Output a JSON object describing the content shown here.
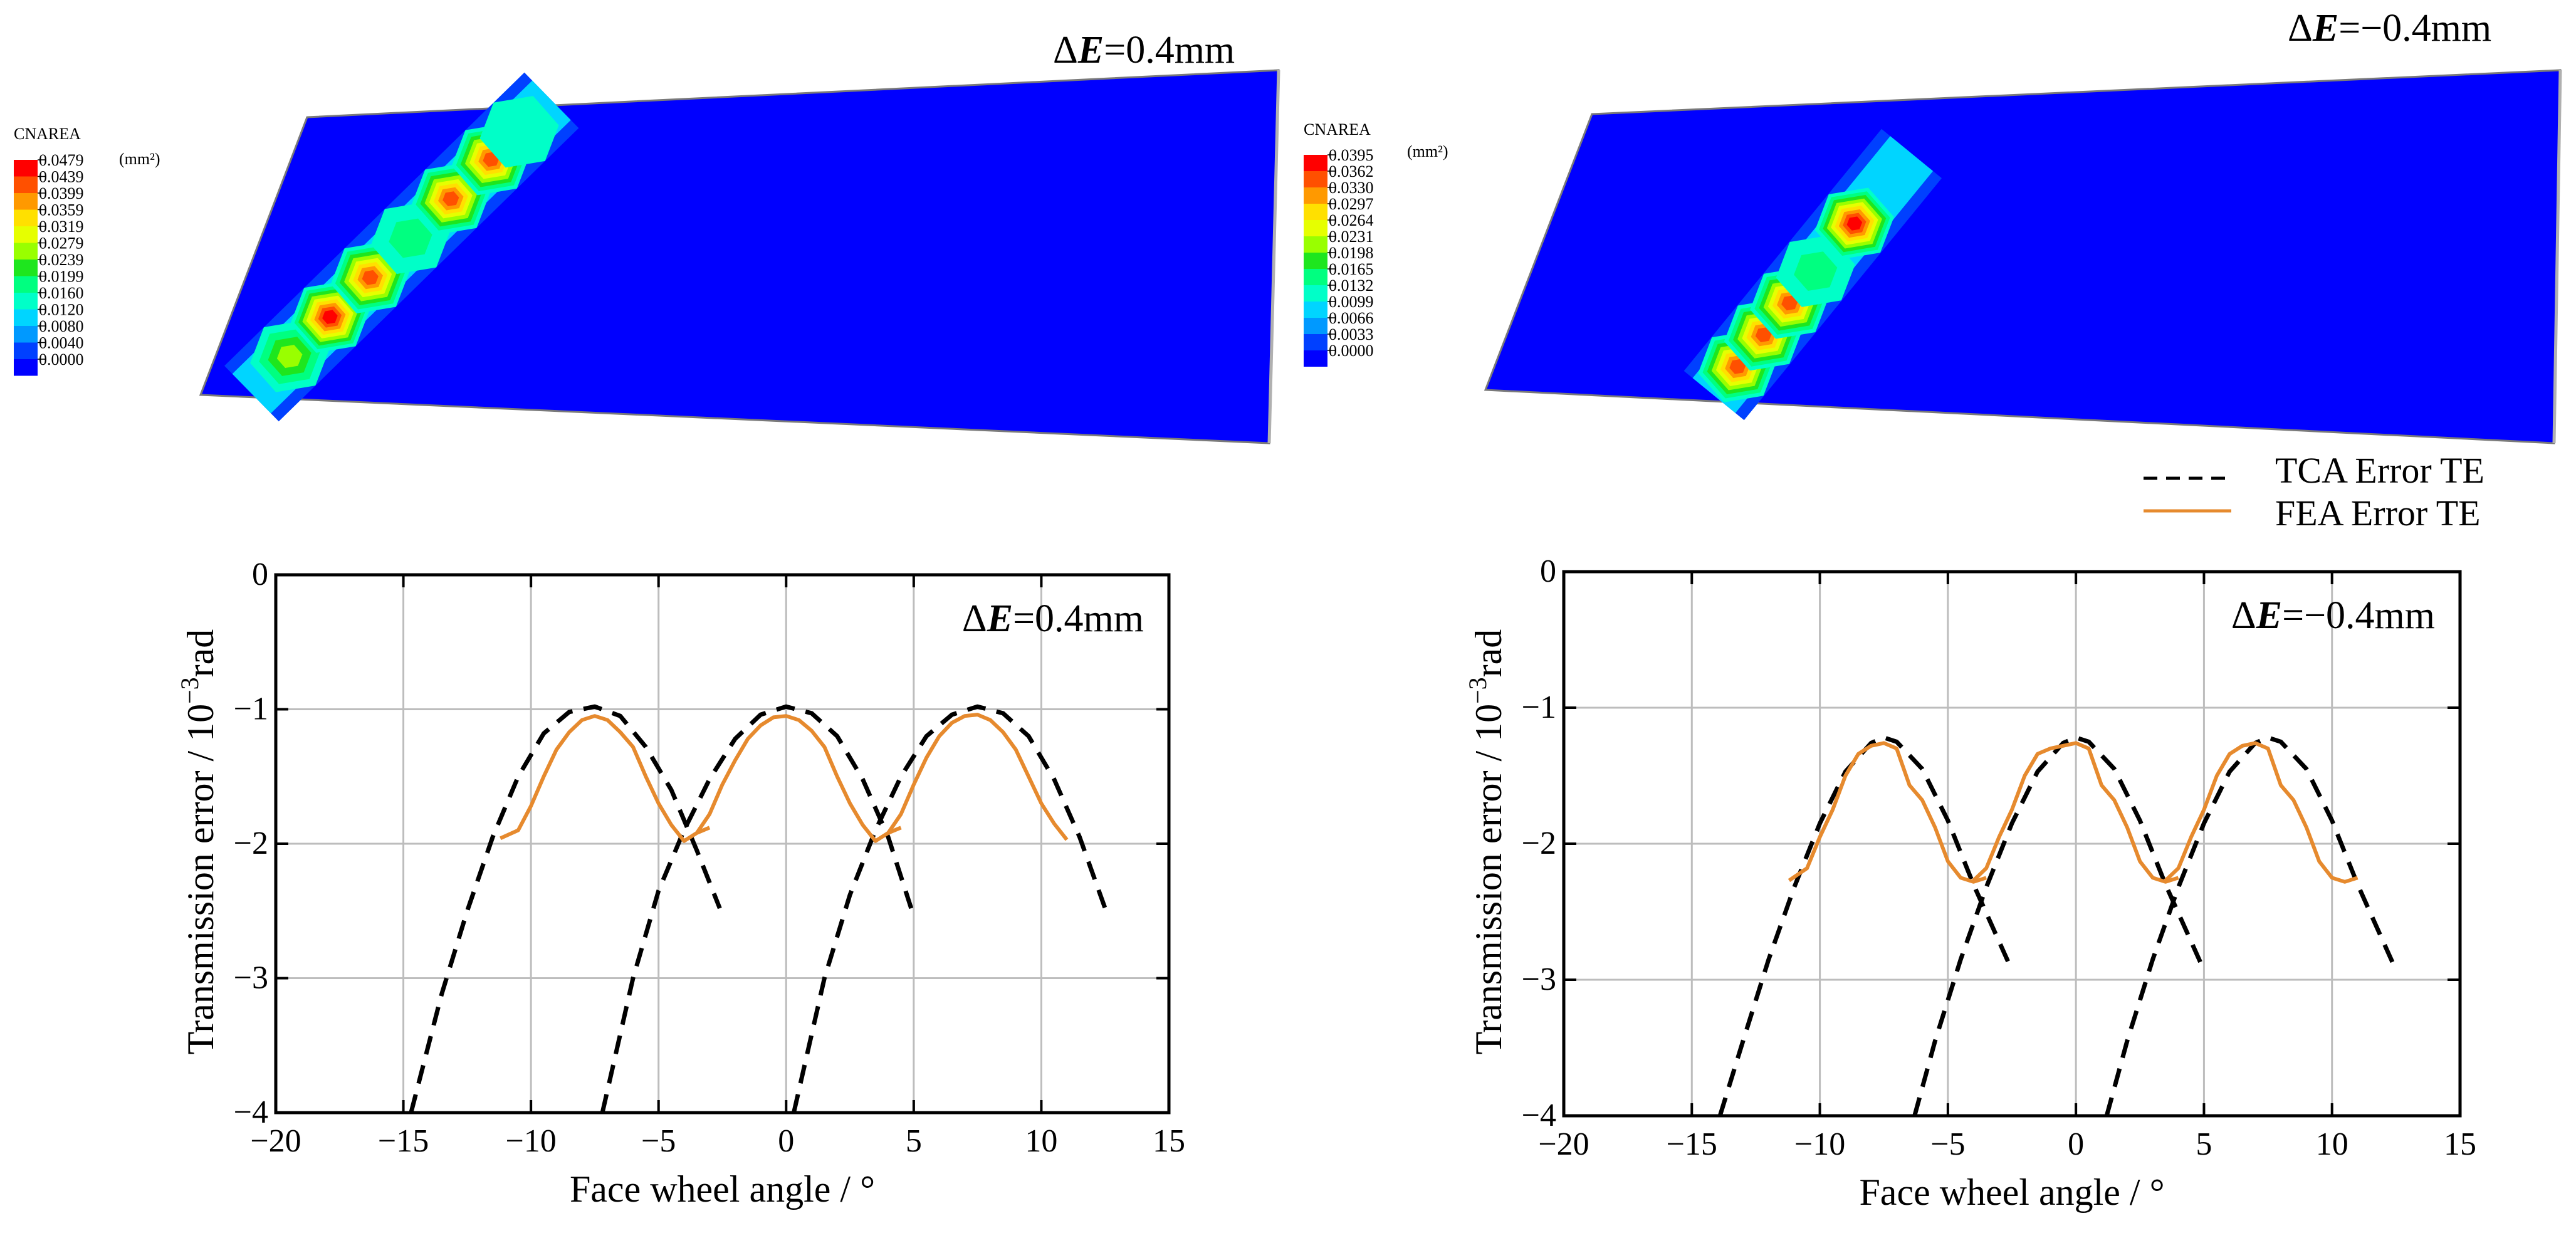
{
  "colors": {
    "contour_scale": [
      "#0000ff",
      "#0040ff",
      "#0099ff",
      "#00d5ff",
      "#00ffc8",
      "#00ff80",
      "#1ee61e",
      "#99ff00",
      "#e6ff00",
      "#ffe000",
      "#ff9900",
      "#ff5000",
      "#ff0000"
    ],
    "plate": "#0000ff",
    "fea": "#e68a2e",
    "tca": "#000000",
    "grid": "#bdbdbd"
  },
  "contour_panels": [
    {
      "title_prefix": "Δ",
      "title_var": "E",
      "title_value": "=0.4mm",
      "legend_title": "CNAREA",
      "legend_unit": "(mm²)",
      "legend_values": [
        "0.0479",
        "0.0439",
        "0.0399",
        "0.0359",
        "0.0319",
        "0.0279",
        "0.0239",
        "0.0199",
        "0.0160",
        "0.0120",
        "0.0080",
        "0.0040",
        "0.0000"
      ],
      "contact_spots": [
        {
          "u": 0.05,
          "intensity": 0.55
        },
        {
          "u": 0.15,
          "intensity": 1.0
        },
        {
          "u": 0.25,
          "intensity": 0.95
        },
        {
          "u": 0.35,
          "intensity": 0.45
        },
        {
          "u": 0.45,
          "intensity": 0.92
        },
        {
          "u": 0.55,
          "intensity": 0.88
        },
        {
          "u": 0.62,
          "intensity": 0.35
        }
      ]
    },
    {
      "title_prefix": "Δ",
      "title_var": "E",
      "title_value": "=−0.4mm",
      "legend_title": "CNAREA",
      "legend_unit": "(mm²)",
      "legend_values": [
        "0.0395",
        "0.0362",
        "0.0330",
        "0.0297",
        "0.0264",
        "0.0231",
        "0.0198",
        "0.0165",
        "0.0132",
        "0.0099",
        "0.0066",
        "0.0033",
        "0.0000"
      ],
      "contact_spots": [
        {
          "u": 0.03,
          "intensity": 0.95
        },
        {
          "u": 0.13,
          "intensity": 0.95
        },
        {
          "u": 0.23,
          "intensity": 0.92
        },
        {
          "u": 0.33,
          "intensity": 0.45
        },
        {
          "u": 0.48,
          "intensity": 1.0
        }
      ]
    }
  ],
  "legend": {
    "tca_label": "TCA Error TE",
    "fea_label": "FEA Error TE"
  },
  "chart_data": [
    {
      "type": "line",
      "annotation_prefix": "Δ",
      "annotation_var": "E",
      "annotation_value": "=0.4mm",
      "xlabel": "Face wheel angle / °",
      "ylabel_main": "Transmission error / 10",
      "ylabel_exp": "−3",
      "ylabel_unit": "rad",
      "xlim": [
        -20,
        15
      ],
      "ylim": [
        -4,
        0
      ],
      "xticks": [
        -20,
        -15,
        -10,
        -5,
        0,
        5,
        10,
        15
      ],
      "xtick_labels": [
        "−20",
        "−15",
        "−10",
        "−5",
        "0",
        "5",
        "10",
        "15"
      ],
      "yticks": [
        0,
        -1,
        -2,
        -3,
        -4
      ],
      "ytick_labels": [
        "0",
        "−1",
        "−2",
        "−3",
        "−4"
      ],
      "series": [
        {
          "name": "TCA Error TE",
          "style": "dashed",
          "curves": [
            {
              "x": [
                -14.7,
                -13.5,
                -12.5,
                -11.5,
                -10.5,
                -9.5,
                -8.5,
                -7.5,
                -6.5,
                -5.5,
                -4.5,
                -3.5,
                -2.6
              ],
              "y": [
                -4.0,
                -3.12,
                -2.5,
                -1.95,
                -1.5,
                -1.18,
                -1.02,
                -0.98,
                -1.05,
                -1.28,
                -1.6,
                -2.05,
                -2.48
              ]
            },
            {
              "x": [
                -7.2,
                -6.0,
                -5.0,
                -4.0,
                -3.0,
                -2.0,
                -1.0,
                0.0,
                1.0,
                2.0,
                3.0,
                4.0,
                4.9
              ],
              "y": [
                -4.0,
                -3.0,
                -2.35,
                -1.9,
                -1.52,
                -1.22,
                -1.04,
                -0.98,
                -1.03,
                -1.2,
                -1.52,
                -1.95,
                -2.48
              ]
            },
            {
              "x": [
                0.3,
                1.5,
                2.5,
                3.5,
                4.5,
                5.5,
                6.5,
                7.5,
                8.5,
                9.5,
                10.5,
                11.5,
                12.5
              ],
              "y": [
                -4.0,
                -3.0,
                -2.38,
                -1.9,
                -1.5,
                -1.2,
                -1.04,
                -0.98,
                -1.03,
                -1.2,
                -1.52,
                -1.95,
                -2.48
              ]
            }
          ]
        },
        {
          "name": "FEA Error TE",
          "style": "solid",
          "curves": [
            {
              "x": [
                -11.2,
                -10.5,
                -10.0,
                -9.5,
                -9.0,
                -8.5,
                -8.0,
                -7.5,
                -7.0,
                -6.5,
                -6.0,
                -5.5,
                -5.0,
                -4.5,
                -4.0,
                -3.5,
                -3.0
              ],
              "y": [
                -1.96,
                -1.9,
                -1.72,
                -1.5,
                -1.3,
                -1.17,
                -1.08,
                -1.05,
                -1.08,
                -1.17,
                -1.28,
                -1.5,
                -1.7,
                -1.86,
                -1.98,
                -1.92,
                -1.88
              ]
            },
            {
              "x": [
                -3.5,
                -3.0,
                -2.5,
                -2.0,
                -1.5,
                -1.0,
                -0.5,
                0.0,
                0.5,
                1.0,
                1.5,
                2.0,
                2.5,
                3.0,
                3.5,
                4.0,
                4.5
              ],
              "y": [
                -1.92,
                -1.78,
                -1.56,
                -1.38,
                -1.22,
                -1.12,
                -1.06,
                -1.05,
                -1.08,
                -1.16,
                -1.28,
                -1.5,
                -1.7,
                -1.86,
                -1.98,
                -1.92,
                -1.88
              ]
            },
            {
              "x": [
                4.0,
                4.5,
                5.0,
                5.5,
                6.0,
                6.5,
                7.0,
                7.5,
                8.0,
                8.5,
                9.0,
                9.5,
                10.0,
                10.5,
                11.0
              ],
              "y": [
                -1.92,
                -1.78,
                -1.56,
                -1.36,
                -1.2,
                -1.1,
                -1.05,
                -1.04,
                -1.08,
                -1.17,
                -1.3,
                -1.5,
                -1.7,
                -1.85,
                -1.97
              ]
            }
          ]
        }
      ]
    },
    {
      "type": "line",
      "annotation_prefix": "Δ",
      "annotation_var": "E",
      "annotation_value": "=−0.4mm",
      "xlabel": "Face wheel angle / °",
      "ylabel_main": "Transmission error / 10",
      "ylabel_exp": "−3",
      "ylabel_unit": "rad",
      "xlim": [
        -20,
        15
      ],
      "ylim": [
        -4,
        0
      ],
      "xticks": [
        -20,
        -15,
        -10,
        -5,
        0,
        5,
        10,
        15
      ],
      "xtick_labels": [
        "−20",
        "−15",
        "−10",
        "−5",
        "0",
        "5",
        "10",
        "15"
      ],
      "yticks": [
        0,
        -1,
        -2,
        -3,
        -4
      ],
      "ytick_labels": [
        "0",
        "−1",
        "−2",
        "−3",
        "−4"
      ],
      "series": [
        {
          "name": "TCA Error TE",
          "style": "dashed",
          "curves": [
            {
              "x": [
                -13.9,
                -13.0,
                -12.0,
                -11.0,
                -10.0,
                -9.0,
                -8.0,
                -7.5,
                -7.0,
                -6.0,
                -5.0,
                -4.0,
                -3.0,
                -2.5
              ],
              "y": [
                -4.0,
                -3.45,
                -2.85,
                -2.32,
                -1.85,
                -1.47,
                -1.26,
                -1.22,
                -1.25,
                -1.45,
                -1.83,
                -2.3,
                -2.72,
                -2.93
              ]
            },
            {
              "x": [
                -6.3,
                -5.5,
                -4.5,
                -3.5,
                -2.5,
                -1.5,
                -0.5,
                0.0,
                0.5,
                1.5,
                2.5,
                3.5,
                4.5,
                5.0
              ],
              "y": [
                -4.0,
                -3.45,
                -2.85,
                -2.32,
                -1.85,
                -1.47,
                -1.26,
                -1.22,
                -1.25,
                -1.45,
                -1.83,
                -2.3,
                -2.72,
                -2.93
              ]
            },
            {
              "x": [
                1.2,
                2.0,
                3.0,
                4.0,
                5.0,
                6.0,
                7.0,
                7.5,
                8.0,
                9.0,
                10.0,
                11.0,
                12.0,
                12.5
              ],
              "y": [
                -4.0,
                -3.45,
                -2.85,
                -2.32,
                -1.85,
                -1.47,
                -1.26,
                -1.22,
                -1.25,
                -1.45,
                -1.83,
                -2.3,
                -2.72,
                -2.93
              ]
            }
          ]
        },
        {
          "name": "FEA Error TE",
          "style": "solid",
          "curves": [
            {
              "x": [
                -11.2,
                -10.5,
                -10.0,
                -9.5,
                -9.0,
                -8.5,
                -8.0,
                -7.5,
                -7.0,
                -6.5,
                -6.0,
                -5.5,
                -5.0,
                -4.5,
                -4.0,
                -3.5
              ],
              "y": [
                -2.27,
                -2.18,
                -1.95,
                -1.75,
                -1.5,
                -1.34,
                -1.28,
                -1.26,
                -1.3,
                -1.57,
                -1.68,
                -1.88,
                -2.13,
                -2.25,
                -2.28,
                -2.25
              ]
            },
            {
              "x": [
                -4.0,
                -3.5,
                -3.0,
                -2.5,
                -2.0,
                -1.5,
                -1.0,
                -0.5,
                0.0,
                0.5,
                1.0,
                1.5,
                2.0,
                2.5,
                3.0,
                3.5,
                4.0
              ],
              "y": [
                -2.27,
                -2.18,
                -1.95,
                -1.75,
                -1.5,
                -1.34,
                -1.3,
                -1.28,
                -1.26,
                -1.3,
                -1.57,
                -1.68,
                -1.88,
                -2.13,
                -2.25,
                -2.28,
                -2.25
              ]
            },
            {
              "x": [
                3.5,
                4.0,
                4.5,
                5.0,
                5.5,
                6.0,
                6.5,
                7.0,
                7.5,
                8.0,
                8.5,
                9.0,
                9.5,
                10.0,
                10.5,
                11.0
              ],
              "y": [
                -2.27,
                -2.18,
                -1.95,
                -1.75,
                -1.5,
                -1.34,
                -1.28,
                -1.26,
                -1.3,
                -1.57,
                -1.68,
                -1.88,
                -2.13,
                -2.25,
                -2.28,
                -2.25
              ]
            }
          ]
        }
      ]
    }
  ]
}
